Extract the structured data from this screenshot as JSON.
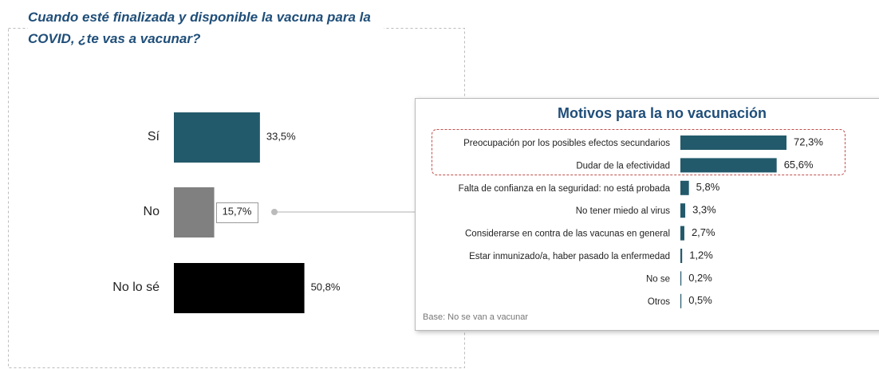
{
  "chart_data": [
    {
      "type": "hbar",
      "title": "Cuando esté finalizada y disponible la vacuna para la COVID, ¿te vas a vacunar?",
      "categories": [
        "Sí",
        "No",
        "No lo sé"
      ],
      "values": [
        33.5,
        15.7,
        50.8
      ],
      "value_labels": [
        "33,5%",
        "15,7%",
        "50,8%"
      ],
      "colors": [
        "#235a6b",
        "#808080",
        "#000000"
      ]
    },
    {
      "type": "hbar",
      "title": "Motivos para la no vacunación",
      "categories": [
        "Preocupación por los posibles efectos secundarios",
        "Dudar de la efectividad",
        "Falta de confianza en la seguridad: no está probada",
        "No tener miedo al virus",
        "Considerarse en contra de las vacunas en general",
        "Estar inmunizado/a, haber pasado la enfermedad",
        "No se",
        "Otros"
      ],
      "values": [
        72.3,
        65.6,
        5.8,
        3.3,
        2.7,
        1.2,
        0.2,
        0.5
      ],
      "value_labels": [
        "72,3%",
        "65,6%",
        "5,8%",
        "3,3%",
        "2,7%",
        "1,2%",
        "0,2%",
        "0,5%"
      ],
      "color": "#235a6b",
      "note": "Base: No se van a vacunar"
    }
  ]
}
